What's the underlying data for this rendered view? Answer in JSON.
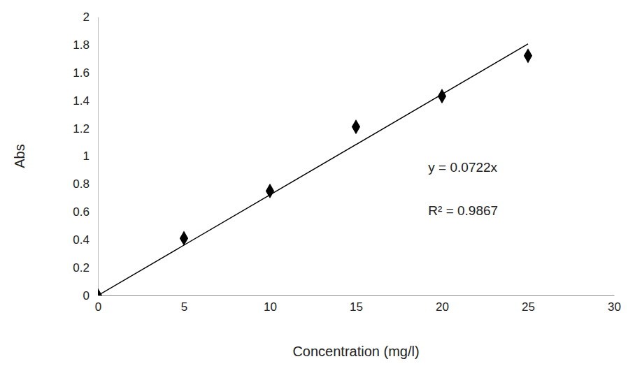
{
  "chart_data": {
    "type": "scatter",
    "x_label": "Concentration (mg/l)",
    "y_label": "Abs",
    "xlim": [
      0,
      30
    ],
    "ylim": [
      0,
      2
    ],
    "xticks": [
      0,
      5,
      10,
      15,
      20,
      25,
      30
    ],
    "yticks": [
      0,
      0.2,
      0.4,
      0.6,
      0.8,
      1,
      1.2,
      1.4,
      1.6,
      1.8,
      2
    ],
    "grid": false,
    "annotations": [
      "y = 0.0722x",
      "R² = 0.9867"
    ],
    "series": [
      {
        "type": "scatter",
        "marker": "diamond",
        "color": "#000000",
        "x": [
          0,
          5,
          10,
          15,
          20,
          25
        ],
        "values": [
          0,
          0.41,
          0.75,
          1.21,
          1.43,
          1.72
        ]
      },
      {
        "type": "line",
        "line_style": "solid",
        "color": "#000000",
        "x": [
          0,
          25
        ],
        "values": [
          0,
          1.805
        ]
      }
    ]
  }
}
